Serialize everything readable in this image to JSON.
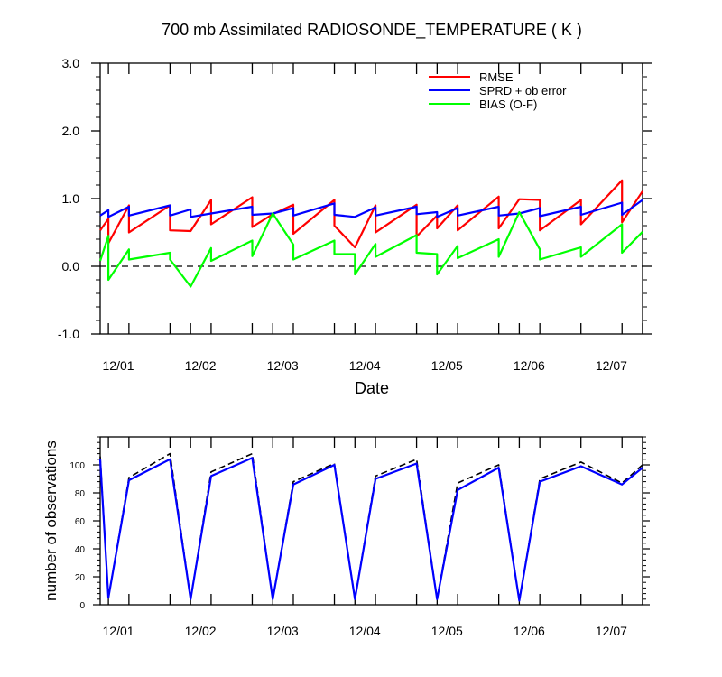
{
  "chart_data": [
    {
      "type": "line",
      "title": "700 mb Assimilated RADIOSONDE_TEMPERATURE ( K )",
      "xlabel": "Date",
      "ylabel": "",
      "ylim": [
        -1.0,
        3.0
      ],
      "yticks": [
        "3.0",
        "2.0",
        "1.0",
        "0.0",
        "-1.0"
      ],
      "xticklabels": [
        "12/01",
        "12/02",
        "12/03",
        "12/04",
        "12/05",
        "12/06",
        "12/07"
      ],
      "legend_position": "top-right",
      "zero_line": "dashed",
      "grid": false,
      "x": [
        -0.5,
        -0.25,
        0,
        0.5,
        0.75,
        1,
        1.5,
        1.75,
        2,
        2.5,
        2.75,
        3,
        3.5,
        3.75,
        4,
        4.5,
        4.75,
        5,
        5.5,
        5.75,
        6,
        6.5,
        7,
        7.5
      ],
      "series": [
        {
          "name": "RMSE",
          "color": "#ff0000",
          "pairs": [
            [
              0.9,
              0.53
            ],
            [
              1.0,
              0.7
            ],
            [
              1.0,
              0.34
            ],
            [
              1.25,
              0.9
            ],
            [
              1.25,
              0.5
            ],
            [
              1.75,
              0.9
            ],
            [
              1.75,
              0.53
            ],
            [
              2.0,
              0.52
            ],
            [
              2.25,
              0.98
            ],
            [
              2.25,
              0.62
            ],
            [
              2.75,
              1.02
            ],
            [
              2.75,
              0.58
            ],
            [
              3.0,
              0.77
            ],
            [
              3.25,
              0.91
            ],
            [
              3.25,
              0.48
            ],
            [
              3.75,
              0.98
            ],
            [
              3.75,
              0.6
            ],
            [
              4.0,
              0.28
            ],
            [
              4.25,
              0.9
            ],
            [
              4.25,
              0.5
            ],
            [
              4.75,
              0.91
            ],
            [
              4.75,
              0.44
            ],
            [
              5.0,
              0.75
            ],
            [
              5.0,
              0.56
            ],
            [
              5.25,
              0.9
            ],
            [
              5.25,
              0.53
            ],
            [
              5.75,
              1.03
            ],
            [
              5.75,
              0.56
            ],
            [
              6.0,
              0.99
            ],
            [
              6.25,
              0.98
            ],
            [
              6.25,
              0.53
            ],
            [
              6.75,
              0.98
            ],
            [
              6.75,
              0.62
            ],
            [
              7.25,
              1.27
            ],
            [
              7.25,
              0.65
            ],
            [
              7.5,
              1.11
            ]
          ]
        },
        {
          "name": "SPRD + ob error",
          "color": "#0000ff",
          "pairs": [
            [
              0.9,
              0.75
            ],
            [
              1.0,
              0.83
            ],
            [
              1.0,
              0.73
            ],
            [
              1.25,
              0.88
            ],
            [
              1.25,
              0.75
            ],
            [
              1.75,
              0.9
            ],
            [
              1.75,
              0.75
            ],
            [
              2.0,
              0.84
            ],
            [
              2.0,
              0.73
            ],
            [
              2.25,
              0.78
            ],
            [
              2.75,
              0.88
            ],
            [
              2.75,
              0.76
            ],
            [
              3.0,
              0.78
            ],
            [
              3.25,
              0.86
            ],
            [
              3.25,
              0.75
            ],
            [
              3.75,
              0.93
            ],
            [
              3.75,
              0.76
            ],
            [
              4.0,
              0.73
            ],
            [
              4.25,
              0.87
            ],
            [
              4.25,
              0.75
            ],
            [
              4.75,
              0.88
            ],
            [
              4.75,
              0.77
            ],
            [
              5.0,
              0.8
            ],
            [
              5.0,
              0.73
            ],
            [
              5.25,
              0.86
            ],
            [
              5.25,
              0.75
            ],
            [
              5.75,
              0.88
            ],
            [
              5.75,
              0.75
            ],
            [
              6.0,
              0.78
            ],
            [
              6.25,
              0.86
            ],
            [
              6.25,
              0.74
            ],
            [
              6.75,
              0.88
            ],
            [
              6.75,
              0.76
            ],
            [
              7.25,
              0.94
            ],
            [
              7.25,
              0.76
            ],
            [
              7.5,
              0.98
            ]
          ]
        },
        {
          "name": "BIAS (O-F)",
          "color": "#00ff00",
          "pairs": [
            [
              0.9,
              0.08
            ],
            [
              1.0,
              0.45
            ],
            [
              1.0,
              -0.2
            ],
            [
              1.25,
              0.25
            ],
            [
              1.25,
              0.1
            ],
            [
              1.75,
              0.2
            ],
            [
              1.75,
              0.1
            ],
            [
              2.0,
              -0.3
            ],
            [
              2.25,
              0.27
            ],
            [
              2.25,
              0.08
            ],
            [
              2.75,
              0.38
            ],
            [
              2.75,
              0.15
            ],
            [
              3.0,
              0.78
            ],
            [
              3.25,
              0.32
            ],
            [
              3.25,
              0.1
            ],
            [
              3.75,
              0.38
            ],
            [
              3.75,
              0.18
            ],
            [
              4.0,
              0.18
            ],
            [
              4.0,
              -0.12
            ],
            [
              4.25,
              0.33
            ],
            [
              4.25,
              0.14
            ],
            [
              4.75,
              0.46
            ],
            [
              4.75,
              0.2
            ],
            [
              5.0,
              0.18
            ],
            [
              5.0,
              -0.12
            ],
            [
              5.25,
              0.3
            ],
            [
              5.25,
              0.12
            ],
            [
              5.75,
              0.4
            ],
            [
              5.75,
              0.14
            ],
            [
              6.0,
              0.8
            ],
            [
              6.25,
              0.25
            ],
            [
              6.25,
              0.1
            ],
            [
              6.75,
              0.28
            ],
            [
              6.75,
              0.14
            ],
            [
              7.25,
              0.62
            ],
            [
              7.25,
              0.2
            ],
            [
              7.5,
              0.51
            ]
          ]
        }
      ]
    },
    {
      "type": "line",
      "title": "",
      "xlabel": "",
      "ylabel": "number of observations",
      "ylim": [
        0,
        120
      ],
      "yticks": [
        "0",
        "20",
        "40",
        "60",
        "80",
        "100"
      ],
      "xticklabels": [
        "12/01",
        "12/02",
        "12/03",
        "12/04",
        "12/05",
        "12/06",
        "12/07"
      ],
      "grid": false,
      "series": [
        {
          "name": "",
          "style": "dashed",
          "color": "#000000",
          "pairs": [
            [
              0.9,
              106
            ],
            [
              1.0,
              5
            ],
            [
              1.25,
              91
            ],
            [
              1.75,
              108
            ],
            [
              2.0,
              4
            ],
            [
              2.25,
              95
            ],
            [
              2.75,
              108
            ],
            [
              3.0,
              4
            ],
            [
              3.25,
              88
            ],
            [
              3.75,
              101
            ],
            [
              4.0,
              4
            ],
            [
              4.25,
              92
            ],
            [
              4.75,
              104
            ],
            [
              5.0,
              4
            ],
            [
              5.25,
              87
            ],
            [
              5.75,
              100
            ],
            [
              6.0,
              3
            ],
            [
              6.25,
              90
            ],
            [
              6.75,
              102
            ],
            [
              7.25,
              87
            ],
            [
              7.5,
              100
            ]
          ]
        },
        {
          "name": "",
          "style": "solid",
          "color": "#0000ff",
          "pairs": [
            [
              0.9,
              104
            ],
            [
              1.0,
              5
            ],
            [
              1.25,
              89
            ],
            [
              1.75,
              104
            ],
            [
              2.0,
              4
            ],
            [
              2.25,
              92
            ],
            [
              2.75,
              105
            ],
            [
              3.0,
              4
            ],
            [
              3.25,
              86
            ],
            [
              3.75,
              100
            ],
            [
              4.0,
              4
            ],
            [
              4.25,
              90
            ],
            [
              4.75,
              101
            ],
            [
              5.0,
              4
            ],
            [
              5.25,
              82
            ],
            [
              5.75,
              98
            ],
            [
              6.0,
              3
            ],
            [
              6.25,
              88
            ],
            [
              6.75,
              99
            ],
            [
              7.25,
              86
            ],
            [
              7.5,
              98
            ]
          ]
        }
      ]
    }
  ]
}
